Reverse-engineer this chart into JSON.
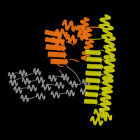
{
  "background_color": "#000000",
  "orange_color": "#E87010",
  "yellow_color": "#C8C800",
  "gray_color": "#909090",
  "figsize": [
    2.0,
    2.0
  ],
  "dpi": 100,
  "gray_helices": [
    [
      12,
      108,
      10,
      4,
      0
    ],
    [
      28,
      105,
      10,
      4,
      5
    ],
    [
      48,
      102,
      10,
      4,
      -5
    ],
    [
      14,
      118,
      11,
      4,
      -3
    ],
    [
      32,
      116,
      11,
      4,
      3
    ],
    [
      52,
      114,
      11,
      4,
      -3
    ],
    [
      70,
      112,
      10,
      4,
      2
    ],
    [
      88,
      110,
      10,
      4,
      -2
    ],
    [
      20,
      128,
      11,
      4,
      -5
    ],
    [
      40,
      126,
      12,
      4,
      3
    ],
    [
      60,
      124,
      12,
      4,
      -3
    ],
    [
      80,
      122,
      11,
      4,
      2
    ],
    [
      100,
      120,
      10,
      4,
      -2
    ],
    [
      118,
      118,
      10,
      4,
      3
    ],
    [
      30,
      140,
      11,
      4,
      -5
    ],
    [
      52,
      138,
      12,
      4,
      3
    ],
    [
      73,
      135,
      12,
      4,
      -3
    ],
    [
      95,
      133,
      11,
      4,
      2
    ],
    [
      115,
      131,
      10,
      4,
      -2
    ]
  ],
  "orange_helices_top": [
    [
      90,
      35,
      18,
      6,
      -10
    ],
    [
      80,
      48,
      15,
      5,
      5
    ],
    [
      110,
      42,
      14,
      5,
      -5
    ],
    [
      75,
      60,
      16,
      5,
      8
    ],
    [
      95,
      55,
      14,
      5,
      -8
    ],
    [
      112,
      52,
      13,
      5,
      5
    ]
  ],
  "orange_sheet_strands": [
    [
      80,
      68,
      30,
      8,
      -5
    ],
    [
      82,
      78,
      28,
      8,
      -3
    ],
    [
      85,
      88,
      26,
      8,
      -2
    ],
    [
      78,
      58,
      28,
      7,
      -8
    ],
    [
      76,
      48,
      25,
      7,
      -12
    ]
  ],
  "orange_right_helices": [
    [
      120,
      40,
      14,
      5,
      85
    ],
    [
      124,
      55,
      14,
      5,
      85
    ],
    [
      126,
      70,
      13,
      5,
      80
    ],
    [
      122,
      85,
      14,
      5,
      82
    ]
  ],
  "yellow_helices": [
    [
      148,
      40,
      18,
      6,
      80
    ],
    [
      152,
      55,
      18,
      6,
      80
    ],
    [
      155,
      70,
      18,
      6,
      80
    ],
    [
      155,
      85,
      18,
      6,
      78
    ],
    [
      155,
      100,
      18,
      6,
      80
    ],
    [
      153,
      115,
      18,
      6,
      78
    ],
    [
      152,
      130,
      18,
      6,
      80
    ],
    [
      150,
      145,
      18,
      6,
      78
    ],
    [
      148,
      160,
      16,
      6,
      75
    ]
  ],
  "yellow_sheet_strands": [
    [
      133,
      75,
      24,
      7,
      -5
    ],
    [
      135,
      85,
      24,
      7,
      -4
    ],
    [
      136,
      95,
      24,
      7,
      -3
    ],
    [
      134,
      105,
      24,
      7,
      -4
    ],
    [
      133,
      115,
      22,
      7,
      -5
    ],
    [
      132,
      125,
      22,
      7,
      -4
    ],
    [
      131,
      135,
      20,
      7,
      -5
    ],
    [
      130,
      145,
      20,
      7,
      -4
    ]
  ],
  "yellow_bottom_helices": [
    [
      135,
      162,
      16,
      5,
      5
    ],
    [
      130,
      172,
      16,
      5,
      -5
    ],
    [
      145,
      168,
      14,
      5,
      10
    ]
  ]
}
